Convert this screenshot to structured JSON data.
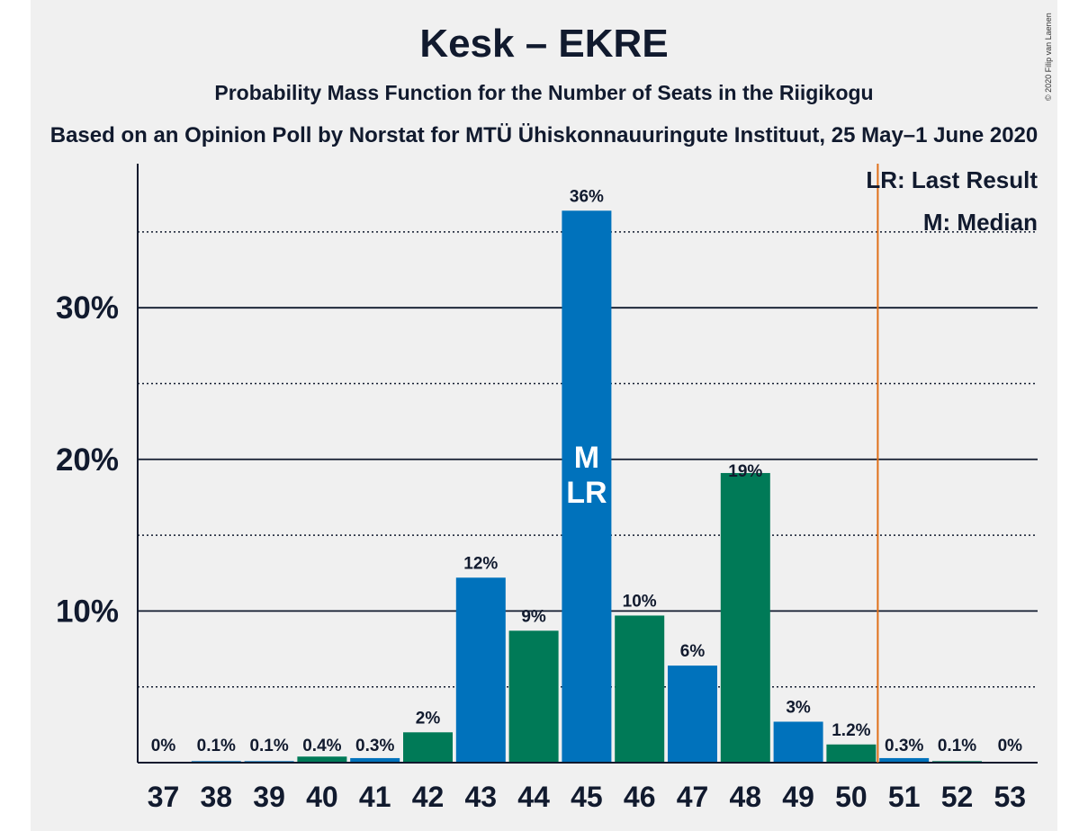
{
  "chart_data": {
    "type": "bar",
    "title": "Kesk – EKRE",
    "subtitle": "Probability Mass Function for the Number of Seats in the Riigikogu",
    "source": "Based on an Opinion Poll by Norstat for MTÜ Ühiskonnauuringute Instituut, 25 May–1 June 2020",
    "copyright": "© 2020 Filip van Laenen",
    "categories": [
      "37",
      "38",
      "39",
      "40",
      "41",
      "42",
      "43",
      "44",
      "45",
      "46",
      "47",
      "48",
      "49",
      "50",
      "51",
      "52",
      "53"
    ],
    "values": [
      0,
      0.1,
      0.1,
      0.4,
      0.3,
      2,
      12.2,
      8.7,
      36.4,
      9.7,
      6.4,
      19.1,
      2.7,
      1.2,
      0.3,
      0.1,
      0
    ],
    "labels": [
      "0%",
      "0.1%",
      "0.1%",
      "0.4%",
      "0.3%",
      "2%",
      "12%",
      "9%",
      "36%",
      "10%",
      "6%",
      "19%",
      "3%",
      "1.2%",
      "0.3%",
      "0.1%",
      "0%"
    ],
    "bar_colors": [
      "#0072bc",
      "#0072bc",
      "#0072bc",
      "#007a57",
      "#0072bc",
      "#007a57",
      "#0072bc",
      "#007a57",
      "#0072bc",
      "#007a57",
      "#0072bc",
      "#007a57",
      "#0072bc",
      "#007a57",
      "#0072bc",
      "#007a57",
      "#0072bc"
    ],
    "yticks": [
      {
        "value": 10,
        "label": "10%"
      },
      {
        "value": 20,
        "label": "20%"
      },
      {
        "value": 30,
        "label": "30%"
      }
    ],
    "ylim": [
      0,
      39.5
    ],
    "dotted_gridlines": [
      5,
      15,
      25,
      35
    ],
    "median_seat": "45",
    "median_marker": "M",
    "last_result_seat": "45",
    "last_result_marker": "LR",
    "majority_line_after_seat": "50",
    "legend": [
      "LR: Last Result",
      "M: Median"
    ],
    "legend_position": "top-right",
    "colors": {
      "blue": "#0072bc",
      "green": "#007a57",
      "majority_line": "#e0701a",
      "background": "#f0f0f0",
      "text": "#111a2e"
    }
  }
}
